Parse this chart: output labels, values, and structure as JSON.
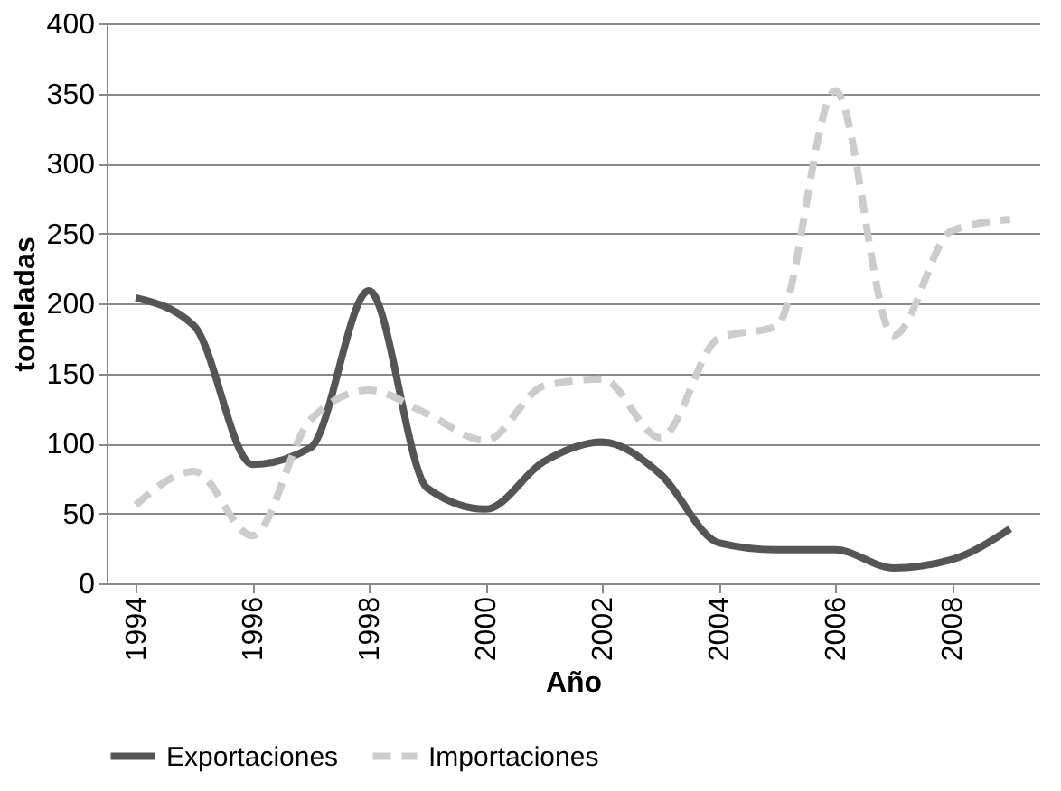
{
  "chart_data": {
    "type": "line",
    "xlabel": "Año",
    "ylabel": "toneladas",
    "x": [
      1994,
      1995,
      1996,
      1997,
      1998,
      1999,
      2000,
      2001,
      2002,
      2003,
      2004,
      2005,
      2006,
      2007,
      2008,
      2009
    ],
    "series": [
      {
        "name": "Exportaciones",
        "color": "#555555",
        "line_style": "solid",
        "values": [
          204,
          184,
          85,
          97,
          209,
          68,
          53,
          87,
          101,
          78,
          29,
          24,
          24,
          11,
          17,
          39
        ]
      },
      {
        "name": "Importaciones",
        "color": "#cccccc",
        "line_style": "dashed",
        "values": [
          56,
          80,
          34,
          117,
          138,
          121,
          102,
          141,
          146,
          104,
          175,
          184,
          352,
          177,
          252,
          260
        ]
      }
    ],
    "xlim": [
      1993.5,
      2009.5
    ],
    "xticks": [
      1994,
      1996,
      1998,
      2000,
      2002,
      2004,
      2006,
      2008
    ],
    "ylim": [
      0,
      400
    ],
    "yticks": [
      0,
      50,
      100,
      150,
      200,
      250,
      300,
      350,
      400
    ],
    "grid": "y",
    "legend": "bottom",
    "marker": "none"
  }
}
